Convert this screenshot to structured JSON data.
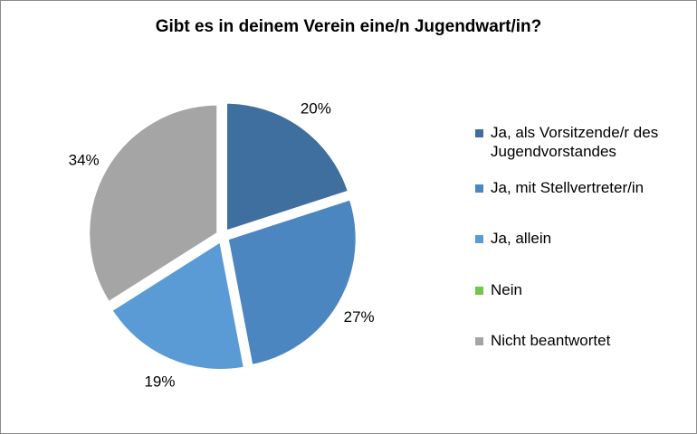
{
  "chart_data": {
    "type": "pie",
    "title": "Gibt es in deinem Verein eine/n Jugendwart/in?",
    "categories": [
      "Ja, als Vorsitzende/r des Jugendvorstandes",
      "Ja, mit Stellvertreter/in",
      "Ja, allein",
      "Nein",
      "Nicht beantwortet"
    ],
    "values": [
      20,
      27,
      19,
      0,
      34
    ],
    "labels": [
      "20%",
      "27%",
      "19%",
      "",
      "34%"
    ],
    "colors": [
      "#3f6f9f",
      "#4c86c0",
      "#5b9bd5",
      "#70c74a",
      "#a5a5a5"
    ],
    "legend_position": "right"
  }
}
